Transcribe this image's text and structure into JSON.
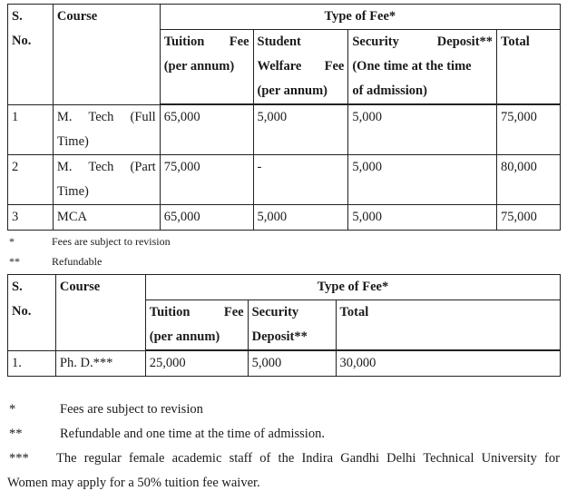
{
  "table1": {
    "headers": {
      "sno": [
        "S.",
        "No."
      ],
      "course": "Course",
      "type_of_fee": "Type of Fee*",
      "tuition": [
        "Tuition",
        "Fee",
        "(per annum)"
      ],
      "welfare": [
        "Student",
        "Welfare",
        "Fee",
        "(per annum)"
      ],
      "security": [
        "Security",
        "Deposit**",
        "(One time at the time",
        "of admission)"
      ],
      "total": "Total"
    },
    "rows": [
      {
        "sno": "1",
        "course": [
          "M.",
          "Tech",
          "(Full",
          "Time)"
        ],
        "tuition": "65,000",
        "welfare": "5,000",
        "security": "5,000",
        "total": "75,000"
      },
      {
        "sno": "2",
        "course": [
          "M.",
          "Tech",
          "(Part",
          "Time)"
        ],
        "tuition": "75,000",
        "welfare": "-",
        "security": "5,000",
        "total": "80,000"
      },
      {
        "sno": "3",
        "course": "MCA",
        "tuition": "65,000",
        "welfare": "5,000",
        "security": "5,000",
        "total": "75,000"
      }
    ]
  },
  "notes1": [
    {
      "symbol": "*",
      "text": "Fees are subject to revision"
    },
    {
      "symbol": "**",
      "text": "Refundable"
    }
  ],
  "table2": {
    "headers": {
      "sno": [
        "S.",
        "No."
      ],
      "course": "Course",
      "type_of_fee": "Type of Fee*",
      "tuition": [
        "Tuition",
        "Fee",
        "(per annum)"
      ],
      "security": [
        "Security",
        "Deposit**"
      ],
      "total": "Total"
    },
    "rows": [
      {
        "sno": "1.",
        "course": "Ph. D.***",
        "tuition": "25,000",
        "security": "5,000",
        "total": "30,000"
      }
    ]
  },
  "footnotes": [
    {
      "symbol": "*",
      "text": "Fees are subject to revision"
    },
    {
      "symbol": "**",
      "text": "Refundable and one time at the time of admission."
    },
    {
      "symbol": "***",
      "text": "The regular female academic staff of the Indira Gandhi Delhi Technical University for",
      "continuation": "Women may apply for a 50% tuition fee waiver."
    }
  ]
}
